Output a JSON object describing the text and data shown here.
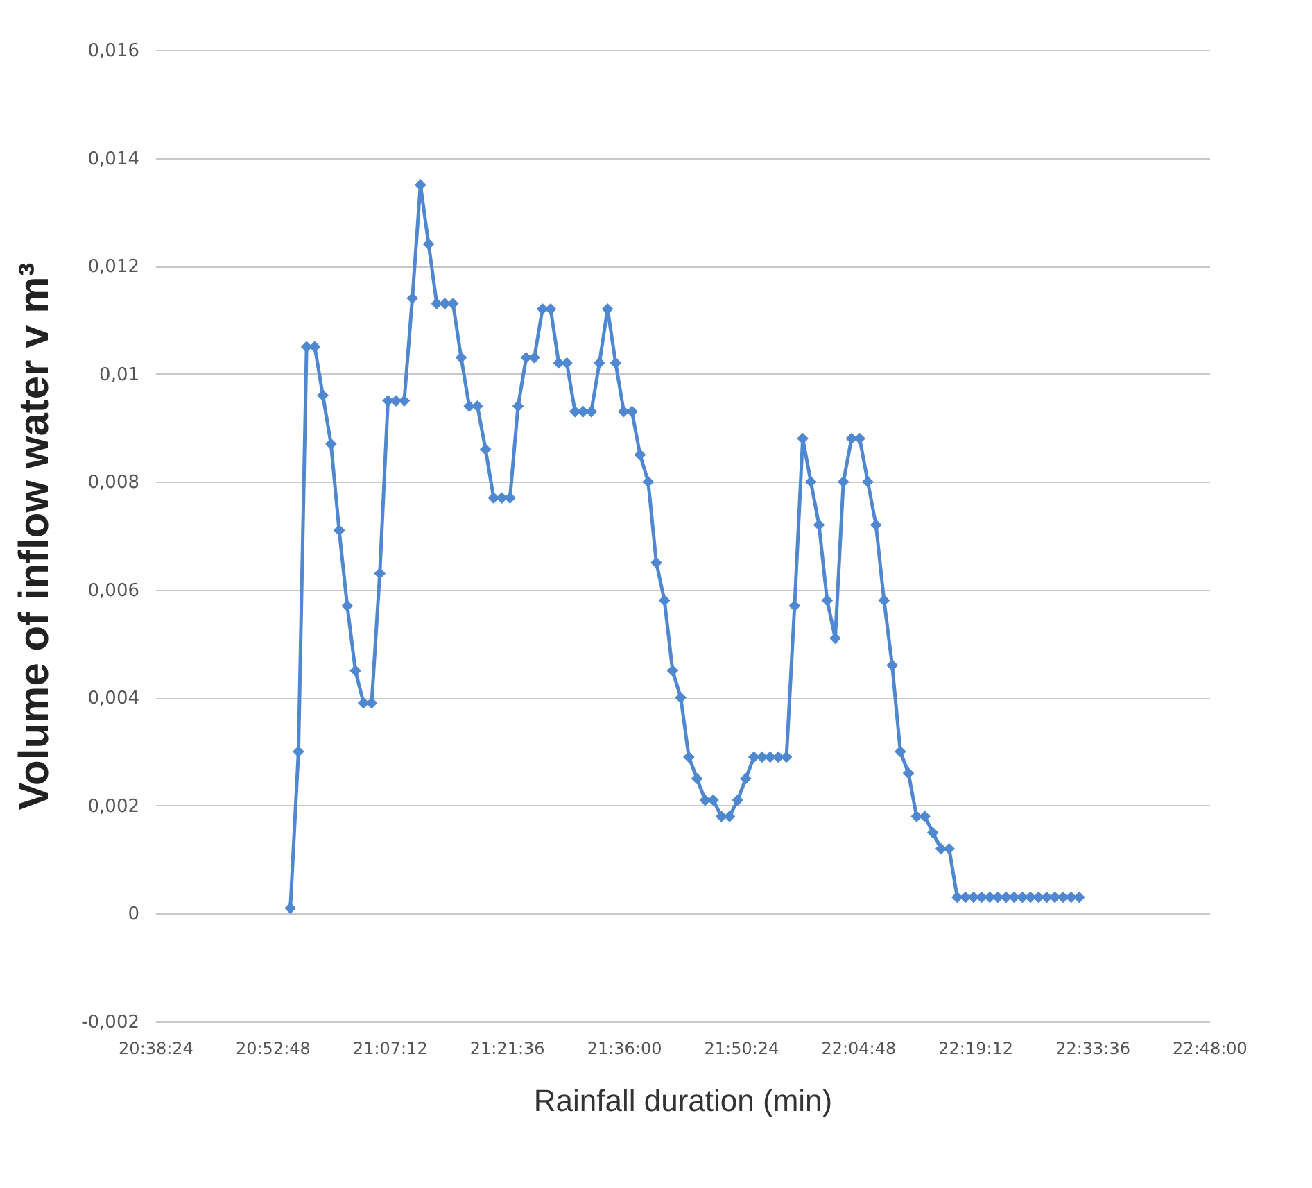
{
  "chart_data": {
    "type": "line",
    "xlabel": "Rainfall duration (min)",
    "ylabel": "Volume of inflow water v m³",
    "xlim": [
      20.64,
      22.8
    ],
    "xticks": [
      {
        "value": 20.64,
        "label": "20:38:24"
      },
      {
        "value": 20.88,
        "label": "20:52:48"
      },
      {
        "value": 21.12,
        "label": "21:07:12"
      },
      {
        "value": 21.36,
        "label": "21:21:36"
      },
      {
        "value": 21.6,
        "label": "21:36:00"
      },
      {
        "value": 21.84,
        "label": "21:50:24"
      },
      {
        "value": 22.08,
        "label": "22:04:48"
      },
      {
        "value": 22.32,
        "label": "22:19:12"
      },
      {
        "value": 22.56,
        "label": "22:33:36"
      },
      {
        "value": 22.8,
        "label": "22:48:00"
      }
    ],
    "ylim": [
      -0.002,
      0.016
    ],
    "yticks": [
      {
        "value": -0.002,
        "label": "-0,002"
      },
      0,
      {
        "value": 0.002,
        "label": "0,002"
      },
      {
        "value": 0.004,
        "label": "0,004"
      },
      {
        "value": 0.006,
        "label": "0,006"
      },
      {
        "value": 0.008,
        "label": "0,008"
      },
      {
        "value": 0.01,
        "label": "0,01"
      },
      {
        "value": 0.012,
        "label": "0,012"
      },
      {
        "value": 0.014,
        "label": "0,014"
      },
      {
        "value": 0.016,
        "label": "0,016"
      }
    ],
    "grid": "y",
    "marker": "diamond",
    "line_style": "solid",
    "x": [
      20.9167,
      20.9333,
      20.95,
      20.9667,
      20.9833,
      21,
      21.0167,
      21.0333,
      21.05,
      21.0667,
      21.0833,
      21.1,
      21.1167,
      21.1333,
      21.15,
      21.1667,
      21.1833,
      21.2,
      21.2167,
      21.2333,
      21.25,
      21.2667,
      21.2833,
      21.3,
      21.3167,
      21.3333,
      21.35,
      21.3667,
      21.3833,
      21.4,
      21.4167,
      21.4333,
      21.45,
      21.4667,
      21.4833,
      21.5,
      21.5167,
      21.5333,
      21.55,
      21.5667,
      21.5833,
      21.6,
      21.6167,
      21.6333,
      21.65,
      21.6667,
      21.6833,
      21.7,
      21.7167,
      21.7333,
      21.75,
      21.7667,
      21.7833,
      21.8,
      21.8167,
      21.8333,
      21.85,
      21.8667,
      21.8833,
      21.9,
      21.9167,
      21.9333,
      21.95,
      21.9667,
      21.9833,
      22,
      22.0167,
      22.0333,
      22.05,
      22.0667,
      22.0833,
      22.1,
      22.1167,
      22.1333,
      22.15,
      22.1667,
      22.1833,
      22.2,
      22.2167,
      22.2333,
      22.25,
      22.2667,
      22.2833,
      22.3,
      22.3167,
      22.3333,
      22.35,
      22.3667,
      22.3833,
      22.4,
      22.4167,
      22.4333,
      22.45,
      22.4667,
      22.4833,
      22.5,
      22.5167,
      22.5333
    ],
    "series": [
      {
        "color": "#4f88d0",
        "values": [
          0.0001,
          0.003,
          0.0105,
          0.0105,
          0.0096,
          0.0087,
          0.0071,
          0.0057,
          0.0045,
          0.0039,
          0.0039,
          0.0063,
          0.0095,
          0.0095,
          0.0095,
          0.0114,
          0.0135,
          0.0124,
          0.0113,
          0.0113,
          0.0113,
          0.0103,
          0.0094,
          0.0094,
          0.0086,
          0.0077,
          0.0077,
          0.0077,
          0.0094,
          0.0103,
          0.0103,
          0.0112,
          0.0112,
          0.0102,
          0.0102,
          0.0093,
          0.0093,
          0.0093,
          0.0102,
          0.0112,
          0.0102,
          0.0093,
          0.0093,
          0.0085,
          0.008,
          0.0065,
          0.0058,
          0.0045,
          0.004,
          0.0029,
          0.0025,
          0.0021,
          0.0021,
          0.0018,
          0.0018,
          0.0021,
          0.0025,
          0.0029,
          0.0029,
          0.0029,
          0.0029,
          0.0029,
          0.0057,
          0.0088,
          0.008,
          0.0072,
          0.0058,
          0.0051,
          0.008,
          0.0088,
          0.0088,
          0.008,
          0.0072,
          0.0058,
          0.0046,
          0.003,
          0.0026,
          0.0018,
          0.0018,
          0.0015,
          0.0012,
          0.0012,
          0.0003,
          0.0003,
          0.0003,
          0.0003,
          0.0003,
          0.0003,
          0.0003,
          0.0003,
          0.0003,
          0.0003,
          0.0003,
          0.0003,
          0.0003,
          0.0003,
          0.0003,
          0.0003
        ]
      }
    ]
  }
}
